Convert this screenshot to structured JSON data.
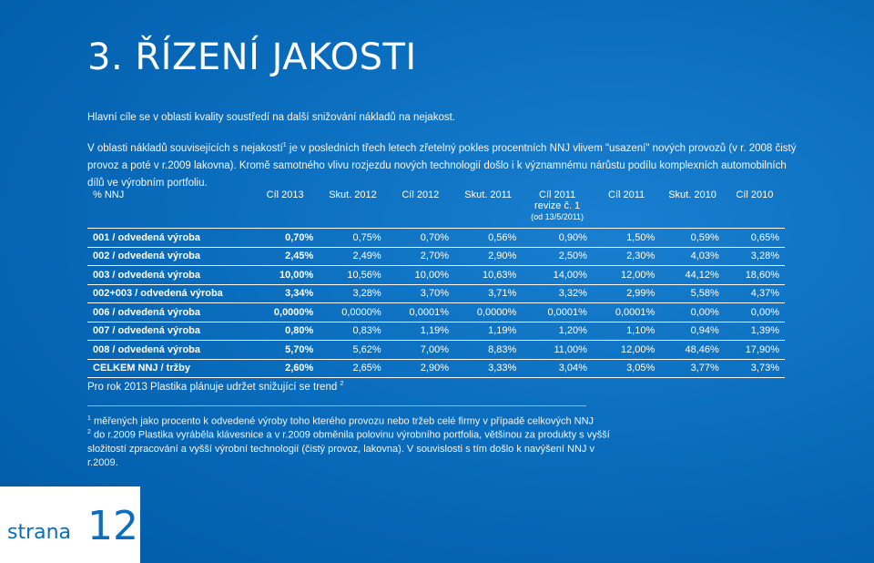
{
  "title": "3. ŘÍZENÍ JAKOSTI",
  "intro": "Hlavní cíle se v oblasti kvality soustředí na další snižování nákladů na nejakost.",
  "paragraph": {
    "part1": "V oblasti nákladů souvisejících s nejakostí",
    "sup": "1",
    "part2": " je v posledních třech letech zřetelný pokles procentních NNJ vlivem \"usazení\" nových provozů (v r. 2008 čistý provoz a poté v r.2009 lakovna). Kromě samotného vlivu rozjezdu nových technologií došlo i k významnému nárůstu podílu komplexních automobilních dílů ve výrobním portfoliu."
  },
  "table": {
    "headers": [
      {
        "label": "% NNJ"
      },
      {
        "label": "Cíl 2013"
      },
      {
        "label": "Skut. 2012"
      },
      {
        "label": "Cíl 2012"
      },
      {
        "label": "Skut. 2011"
      },
      {
        "label": "Cíl 2011",
        "line2": "revize č. 1",
        "line3": "(od 13/5/2011)"
      },
      {
        "label": "Cíl 2011"
      },
      {
        "label": "Skut. 2010"
      },
      {
        "label": "Cíl 2010"
      }
    ],
    "rows": [
      {
        "label": "001 / odvedená výroba",
        "values": [
          "0,70%",
          "0,75%",
          "0,70%",
          "0,56%",
          "0,90%",
          "1,50%",
          "0,59%",
          "0,65%"
        ]
      },
      {
        "label": "002 / odvedená výroba",
        "values": [
          "2,45%",
          "2,49%",
          "2,70%",
          "2,90%",
          "2,50%",
          "2,30%",
          "4,03%",
          "3,28%"
        ]
      },
      {
        "label": "003 / odvedená výroba",
        "values": [
          "10,00%",
          "10,56%",
          "10,00%",
          "10,63%",
          "14,00%",
          "12,00%",
          "44,12%",
          "18,60%"
        ]
      },
      {
        "label": "002+003 / odvedená výroba",
        "values": [
          "3,34%",
          "3,28%",
          "3,70%",
          "3,71%",
          "3,32%",
          "2,99%",
          "5,58%",
          "4,37%"
        ]
      },
      {
        "label": "006 / odvedená výroba",
        "values": [
          "0,0000%",
          "0,0000%",
          "0,0001%",
          "0,0000%",
          "0,0001%",
          "0,0001%",
          "0,00%",
          "0,00%"
        ]
      },
      {
        "label": "007 / odvedená výroba",
        "values": [
          "0,80%",
          "0,83%",
          "1,19%",
          "1,19%",
          "1,20%",
          "1,10%",
          "0,94%",
          "1,39%"
        ]
      },
      {
        "label": "008 / odvedená výroba",
        "values": [
          "5,70%",
          "5,62%",
          "7,00%",
          "8,83%",
          "11,00%",
          "12,00%",
          "48,46%",
          "17,90%"
        ]
      },
      {
        "label": "CELKEM NNJ / tržby",
        "values": [
          "2,60%",
          "2,65%",
          "2,90%",
          "3,33%",
          "3,04%",
          "3,05%",
          "3,77%",
          "3,73%"
        ]
      }
    ]
  },
  "plan": {
    "text": "Pro rok 2013 Plastika plánuje udržet snižující se trend",
    "sup": "2"
  },
  "footnotes": [
    {
      "num": "1",
      "text": " měřených jako procento k odvedené výroby toho kterého provozu nebo tržeb celé firmy v případě celkových NNJ"
    },
    {
      "num": "2",
      "text": " do r.2009 Plastika vyráběla klávesnice a v r.2009 obměnila polovinu výrobního portfolia, většinou za produkty s vyšší složitostí zpracování a vyšší výrobní technologií (čistý provoz, lakovna). V souvislosti s tím došlo k navýšení NNJ v r.2009."
    }
  ],
  "footer": {
    "label": "strana",
    "page_number": "12"
  },
  "colors": {
    "background": "#0066b3",
    "text": "#ffffff",
    "footer_box": "#ffffff",
    "footer_text": "#0a6dbd"
  }
}
